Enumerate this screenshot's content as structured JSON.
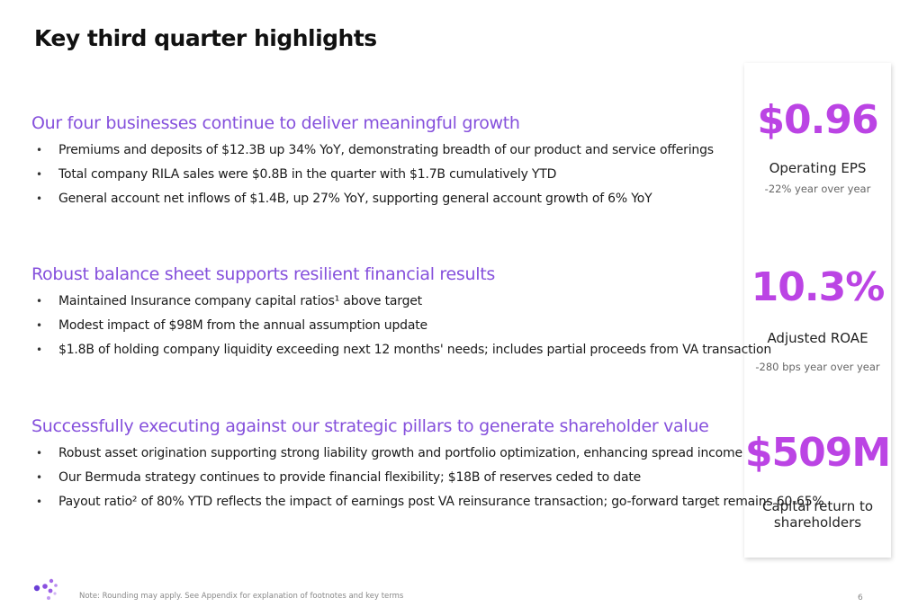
{
  "header": {
    "title": "Key third quarter highlights"
  },
  "sections": [
    {
      "heading": "Our four businesses continue to deliver meaningful growth",
      "bullets": [
        "Premiums and deposits of $12.3B up 34% YoY, demonstrating breadth of our product and service offerings",
        "Total company RILA sales were $0.8B in the quarter with $1.7B cumulatively YTD",
        "General account net inflows of $1.4B, up 27% YoY, supporting general account growth of 6% YoY"
      ]
    },
    {
      "heading": "Robust balance sheet supports resilient financial results",
      "bullets": [
        "Maintained Insurance company capital ratios¹ above target",
        "Modest impact of $98M from the annual assumption update",
        "$1.8B of holding company liquidity exceeding next 12 months' needs; includes partial proceeds from VA transaction"
      ]
    },
    {
      "heading": "Successfully executing against our strategic pillars to generate shareholder value",
      "bullets": [
        "Robust asset origination supporting strong liability growth and portfolio optimization, enhancing spread income",
        "Our Bermuda strategy continues to provide financial flexibility; $18B of reserves ceded to date",
        "Payout ratio² of 80% YTD reflects the impact of earnings post VA reinsurance transaction; go-forward target remains 60-65%"
      ]
    }
  ],
  "metrics": [
    {
      "value": "$0.96",
      "label": "Operating EPS",
      "note": "-22% year over year"
    },
    {
      "value": "10.3%",
      "label": "Adjusted ROAE",
      "note": "-280 bps year over year"
    },
    {
      "value": "$509M",
      "label": "Capital return to shareholders"
    }
  ],
  "footer": {
    "note": "Note: Rounding may apply. See Appendix for explanation of footnotes and key terms",
    "page": "6"
  }
}
